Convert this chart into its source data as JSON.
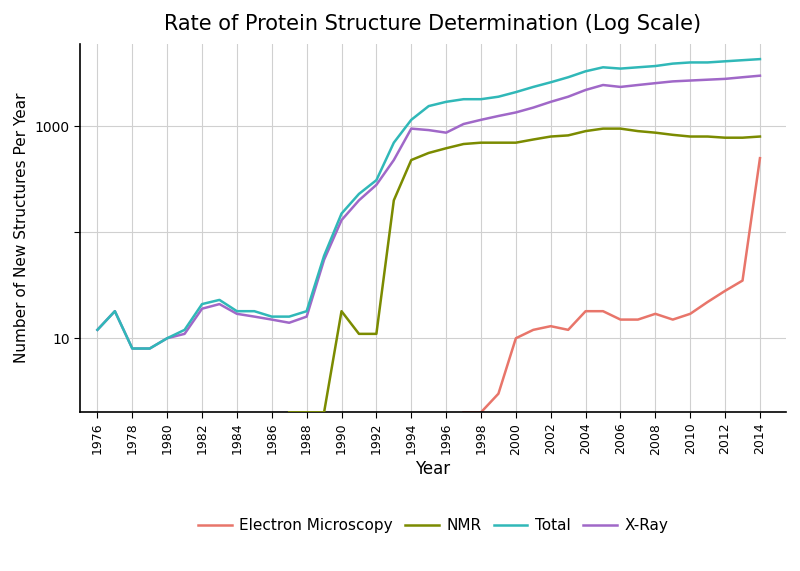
{
  "title": "Rate of Protein Structure Determination (Log Scale)",
  "xlabel": "Year",
  "ylabel": "Number of New Structures Per Year",
  "background_color": "#ffffff",
  "grid_color": "#d0d0d0",
  "colors": {
    "Electron Microscopy": "#e8756a",
    "NMR": "#7b8b00",
    "Total": "#30b8b8",
    "X-Ray": "#a068c8"
  },
  "xray_years": [
    1976,
    1977,
    1978,
    1979,
    1980,
    1981,
    1982,
    1983,
    1984,
    1985,
    1986,
    1987,
    1988,
    1989,
    1990,
    1991,
    1992,
    1993,
    1994,
    1995,
    1996,
    1997,
    1998,
    1999,
    2000,
    2001,
    2002,
    2003,
    2004,
    2005,
    2006,
    2007,
    2008,
    2009,
    2010,
    2011,
    2012,
    2013,
    2014
  ],
  "xray_vals": [
    12,
    18,
    8,
    8,
    10,
    11,
    19,
    21,
    17,
    16,
    15,
    14,
    16,
    55,
    130,
    200,
    280,
    480,
    950,
    920,
    870,
    1050,
    1150,
    1250,
    1350,
    1500,
    1700,
    1900,
    2200,
    2450,
    2350,
    2450,
    2550,
    2650,
    2700,
    2750,
    2800,
    2900,
    3000
  ],
  "nmr_years": [
    1987,
    1988,
    1989,
    1990,
    1991,
    1992,
    1993,
    1994,
    1995,
    1996,
    1997,
    1998,
    1999,
    2000,
    2001,
    2002,
    2003,
    2004,
    2005,
    2006,
    2007,
    2008,
    2009,
    2010,
    2011,
    2012,
    2013,
    2014
  ],
  "nmr_vals": [
    2,
    2,
    2,
    18,
    11,
    11,
    200,
    480,
    560,
    620,
    680,
    700,
    700,
    700,
    750,
    800,
    820,
    900,
    950,
    950,
    900,
    870,
    830,
    800,
    800,
    780,
    780,
    800
  ],
  "total_years": [
    1976,
    1977,
    1978,
    1979,
    1980,
    1981,
    1982,
    1983,
    1984,
    1985,
    1986,
    1987,
    1988,
    1989,
    1990,
    1991,
    1992,
    1993,
    1994,
    1995,
    1996,
    1997,
    1998,
    1999,
    2000,
    2001,
    2002,
    2003,
    2004,
    2005,
    2006,
    2007,
    2008,
    2009,
    2010,
    2011,
    2012,
    2013,
    2014
  ],
  "total_vals": [
    12,
    18,
    8,
    8,
    10,
    12,
    21,
    23,
    18,
    18,
    16,
    16,
    18,
    60,
    150,
    230,
    310,
    700,
    1150,
    1550,
    1700,
    1800,
    1800,
    1900,
    2100,
    2350,
    2600,
    2900,
    3300,
    3600,
    3500,
    3600,
    3700,
    3900,
    4000,
    4000,
    4100,
    4200,
    4300
  ],
  "em_years": [
    1997,
    1998,
    1999,
    2000,
    2001,
    2002,
    2003,
    2004,
    2005,
    2006,
    2007,
    2008,
    2009,
    2010,
    2011,
    2012,
    2013,
    2014
  ],
  "em_vals": [
    2,
    2,
    3,
    10,
    12,
    13,
    12,
    18,
    18,
    15,
    15,
    17,
    15,
    17,
    22,
    28,
    35,
    500
  ],
  "ylim_bottom": 2,
  "ylim_top": 6000,
  "xlim_left": 1975,
  "xlim_right": 2015.5,
  "linewidth": 1.8,
  "title_fontsize": 15,
  "axis_label_fontsize": 12,
  "tick_fontsize": 9,
  "legend_fontsize": 11
}
